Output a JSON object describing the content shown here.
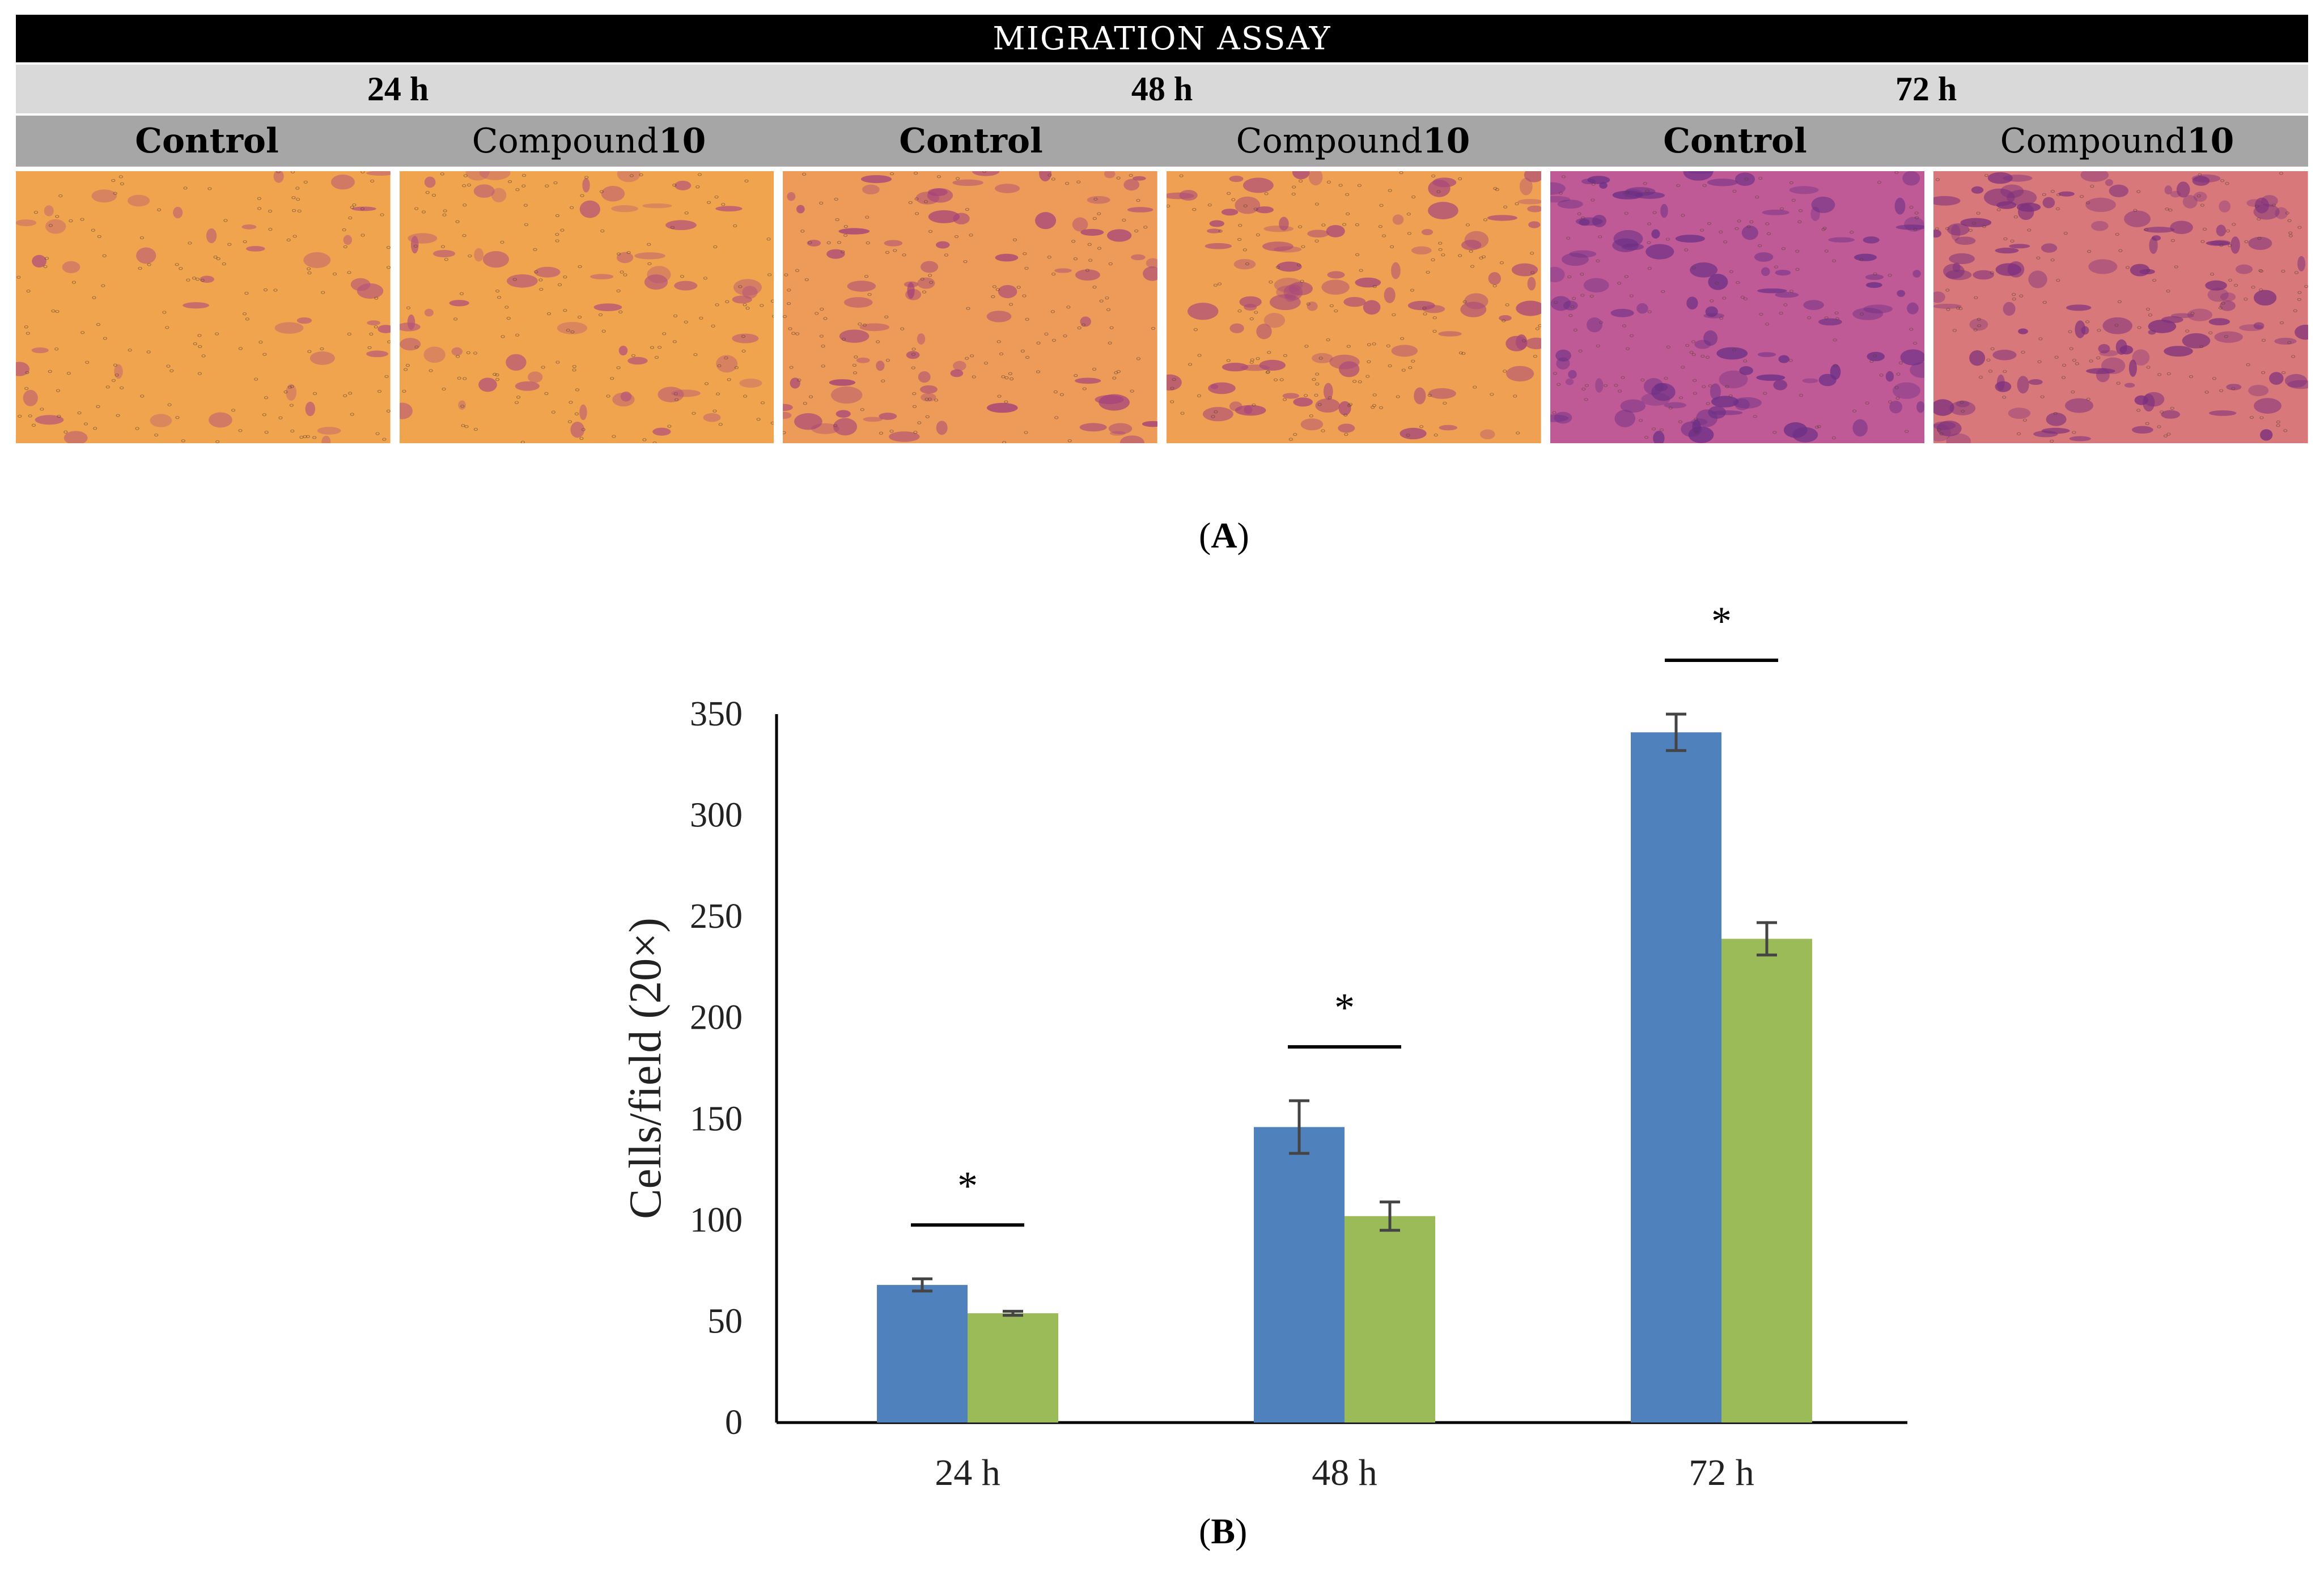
{
  "panel_a": {
    "title": "MIGRATION ASSAY",
    "time_points": [
      "24 h",
      "48 h",
      "72 h"
    ],
    "conditions": [
      {
        "label": "Control",
        "bold_suffix": ""
      },
      {
        "label": "Compound ",
        "bold_suffix": "10"
      }
    ],
    "images": [
      {
        "time": "24 h",
        "condition": "Control",
        "stain": "#f0a44e",
        "cells": "#b5527a"
      },
      {
        "time": "24 h",
        "condition": "Compound 10",
        "stain": "#f0a44e",
        "cells": "#b5527a"
      },
      {
        "time": "48 h",
        "condition": "Control",
        "stain": "#ee9a58",
        "cells": "#a23f7c"
      },
      {
        "time": "48 h",
        "condition": "Compound 10",
        "stain": "#f0a052",
        "cells": "#a8487a"
      },
      {
        "time": "72 h",
        "condition": "Control",
        "stain": "#c05a96",
        "cells": "#6b2f86"
      },
      {
        "time": "72 h",
        "condition": "Compound 10",
        "stain": "#d9787a",
        "cells": "#7c2f7e"
      }
    ],
    "caption_letter": "A"
  },
  "chart_data": {
    "type": "bar",
    "categories": [
      "24 h",
      "48 h",
      "72 h"
    ],
    "series": [
      {
        "name": "Control",
        "color": "#4f81bd",
        "values": [
          68,
          146,
          341
        ],
        "errors": [
          3,
          13,
          9
        ]
      },
      {
        "name": "Compound 10",
        "color": "#9bbb59",
        "values": [
          54,
          102,
          239
        ],
        "errors": [
          1,
          7,
          8
        ]
      }
    ],
    "ylabel": "Cells/field (20×)",
    "ylim": [
      0,
      350
    ],
    "yticks": [
      0,
      50,
      100,
      150,
      200,
      250,
      300,
      350
    ],
    "significance": [
      "*",
      "*",
      "*"
    ],
    "legend": "none",
    "grid": false
  },
  "panel_b": {
    "caption_letter": "B"
  }
}
